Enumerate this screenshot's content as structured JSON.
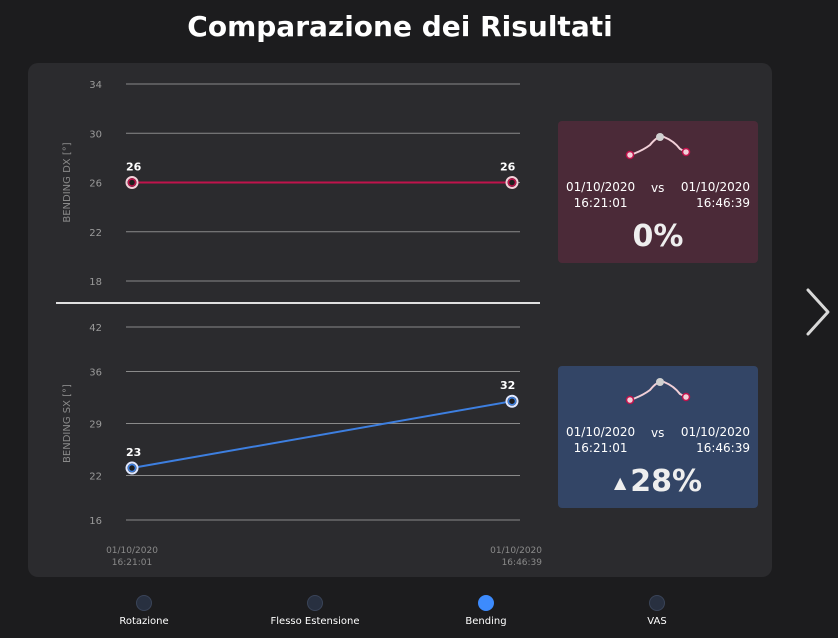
{
  "title": "Comparazione dei Risultati",
  "chart_data": [
    {
      "type": "line",
      "ylabel": "BENDING DX [°]",
      "yticks": [
        18,
        22,
        26,
        30,
        34
      ],
      "ylim": [
        18,
        34
      ],
      "x": [
        "01/10/2020 16:21:01",
        "01/10/2020 16:46:39"
      ],
      "values": [
        26,
        26
      ],
      "color": "#c0134c"
    },
    {
      "type": "line",
      "ylabel": "BENDING SX [°]",
      "yticks": [
        16,
        22,
        29,
        36,
        42
      ],
      "ylim": [
        16,
        42
      ],
      "x": [
        "01/10/2020 16:21:01",
        "01/10/2020 16:46:39"
      ],
      "x_ticks": [
        [
          "01/10/2020",
          "16:21:01"
        ],
        [
          "01/10/2020",
          "16:46:39"
        ]
      ],
      "values": [
        23,
        32
      ],
      "color": "#3d7fe0"
    }
  ],
  "cards": {
    "dx": {
      "date1": "01/10/2020",
      "time1": "16:21:01",
      "vs": "vs",
      "date2": "01/10/2020",
      "time2": "16:46:39",
      "percent": "0%",
      "trend": "none",
      "color": "#4b2a38"
    },
    "sx": {
      "date1": "01/10/2020",
      "time1": "16:21:01",
      "vs": "vs",
      "date2": "01/10/2020",
      "time2": "16:46:39",
      "percent": "28%",
      "trend": "up",
      "color": "#334566"
    }
  },
  "nav": {
    "next_icon": "chevron-right-icon",
    "items": [
      {
        "label": "Rotazione",
        "active": false
      },
      {
        "label": "Flesso Estensione",
        "active": false
      },
      {
        "label": "Bending",
        "active": true
      },
      {
        "label": "VAS",
        "active": false
      }
    ]
  }
}
